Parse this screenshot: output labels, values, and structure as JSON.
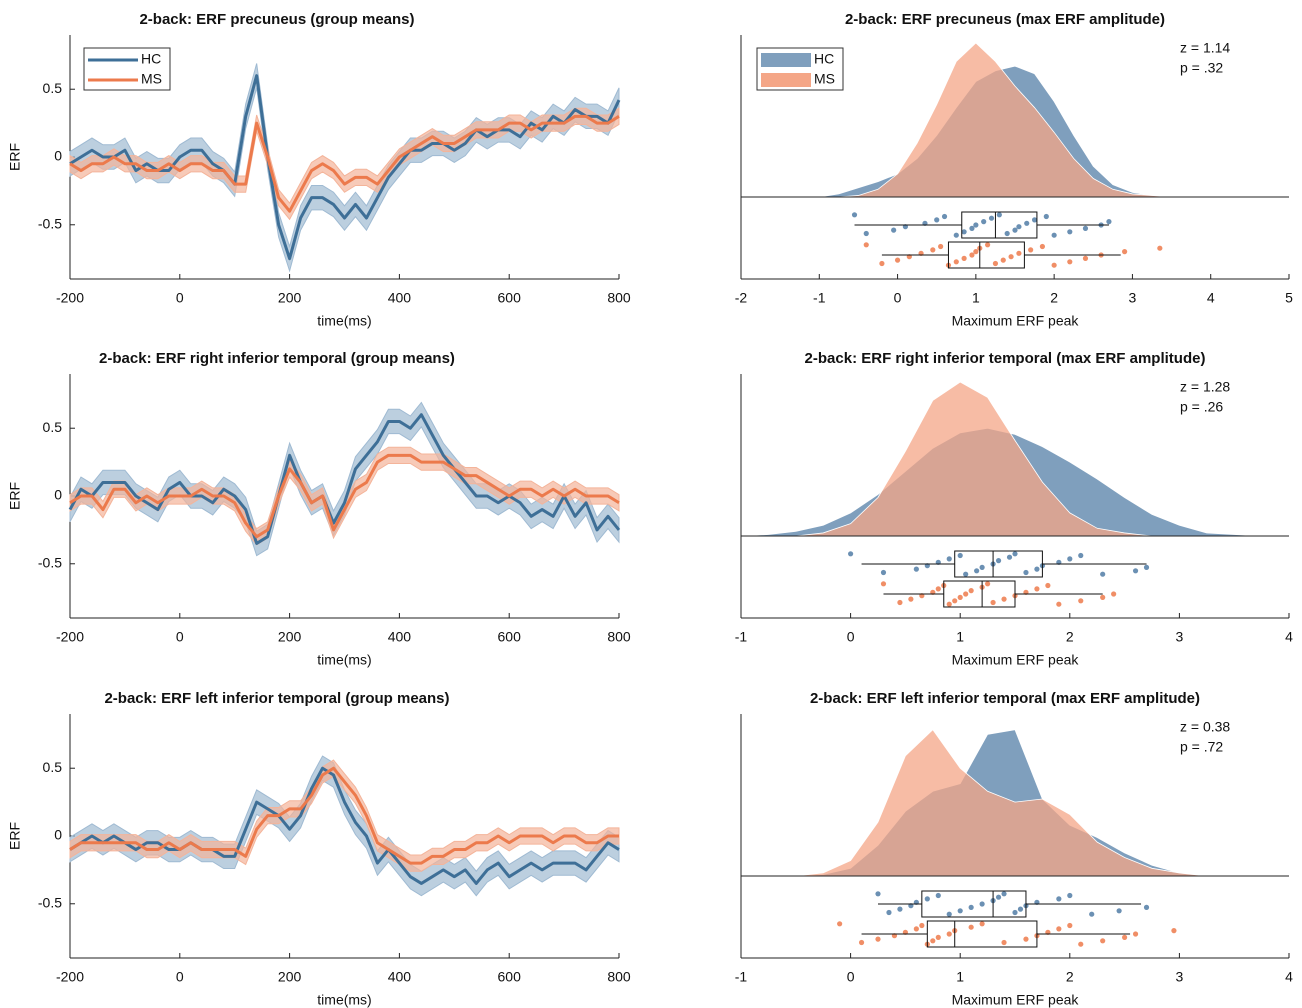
{
  "chart_data": [
    {
      "type": "line",
      "title": "2-back: ERF precuneus (group means)",
      "xlabel": "time(ms)",
      "ylabel": "ERF",
      "legend": "upper left",
      "xlim": [
        -200,
        800
      ],
      "xticks": [
        -200,
        0,
        200,
        400,
        600,
        800
      ],
      "ylim": [
        -0.9,
        0.9
      ],
      "yticks": [
        -0.5,
        0,
        0.5
      ],
      "x": [
        -200,
        -180,
        -160,
        -140,
        -120,
        -100,
        -80,
        -60,
        -40,
        -20,
        0,
        20,
        40,
        60,
        80,
        100,
        120,
        140,
        160,
        180,
        200,
        220,
        240,
        260,
        280,
        300,
        320,
        340,
        360,
        380,
        400,
        420,
        440,
        460,
        480,
        500,
        520,
        540,
        560,
        580,
        600,
        620,
        640,
        660,
        680,
        700,
        720,
        740,
        760,
        780,
        800
      ],
      "series": [
        {
          "name": "HC",
          "color": "#3e6f97",
          "band_color": "#9fbad2",
          "band": 0.09,
          "values": [
            -0.05,
            0.0,
            0.05,
            0.0,
            0.0,
            0.05,
            -0.1,
            -0.05,
            -0.1,
            -0.1,
            0.0,
            0.05,
            0.05,
            -0.05,
            -0.1,
            -0.2,
            0.3,
            0.6,
            0.0,
            -0.5,
            -0.75,
            -0.45,
            -0.3,
            -0.3,
            -0.35,
            -0.45,
            -0.35,
            -0.45,
            -0.3,
            -0.15,
            -0.05,
            0.05,
            0.05,
            0.1,
            0.1,
            0.05,
            0.1,
            0.2,
            0.15,
            0.2,
            0.2,
            0.15,
            0.25,
            0.2,
            0.3,
            0.25,
            0.35,
            0.3,
            0.3,
            0.25,
            0.42
          ]
        },
        {
          "name": "MS",
          "color": "#ec7a4c",
          "band_color": "#f4b49a",
          "band": 0.06,
          "values": [
            -0.05,
            -0.1,
            -0.05,
            -0.05,
            0.0,
            -0.05,
            -0.05,
            -0.1,
            -0.1,
            -0.05,
            -0.1,
            -0.05,
            -0.05,
            -0.1,
            -0.1,
            -0.2,
            -0.2,
            0.25,
            0.0,
            -0.3,
            -0.4,
            -0.25,
            -0.1,
            -0.05,
            -0.1,
            -0.2,
            -0.15,
            -0.15,
            -0.2,
            -0.1,
            0.0,
            0.05,
            0.1,
            0.15,
            0.1,
            0.1,
            0.15,
            0.2,
            0.2,
            0.2,
            0.25,
            0.25,
            0.2,
            0.25,
            0.25,
            0.25,
            0.3,
            0.3,
            0.25,
            0.25,
            0.3
          ]
        }
      ]
    },
    {
      "type": "raincloud",
      "title": "2-back: ERF precuneus (max ERF amplitude)",
      "xlabel": "Maximum ERF peak",
      "legend": "upper left",
      "xlim": [
        -2,
        5
      ],
      "xticks": [
        -2,
        -1,
        0,
        1,
        2,
        3,
        4,
        5
      ],
      "annotations": [
        "z = 1.14",
        "p = .32"
      ],
      "density_x": [
        -1,
        -0.75,
        -0.5,
        -0.25,
        0,
        0.25,
        0.5,
        0.75,
        1,
        1.25,
        1.5,
        1.75,
        2,
        2.25,
        2.5,
        2.75,
        3,
        3.25,
        3.5,
        3.75,
        4
      ],
      "series": [
        {
          "name": "HC",
          "color": "#7f9fbd",
          "point_color": "#6b90b3",
          "density": [
            0,
            0.02,
            0.06,
            0.1,
            0.15,
            0.25,
            0.4,
            0.58,
            0.75,
            0.82,
            0.85,
            0.8,
            0.62,
            0.4,
            0.2,
            0.08,
            0.03,
            0.01,
            0,
            0,
            0
          ],
          "box": {
            "whislo": -0.55,
            "q1": 0.82,
            "med": 1.25,
            "q3": 1.78,
            "whishi": 2.7
          },
          "points": [
            -0.55,
            -0.4,
            -0.05,
            0.1,
            0.35,
            0.5,
            0.6,
            0.75,
            0.85,
            0.95,
            1.0,
            1.1,
            1.2,
            1.3,
            1.4,
            1.5,
            1.55,
            1.65,
            1.75,
            1.9,
            2.0,
            2.2,
            2.4,
            2.6,
            2.7
          ]
        },
        {
          "name": "MS",
          "color": "#f4a687",
          "point_color": "#f08e66",
          "density": [
            0,
            0,
            0.01,
            0.05,
            0.15,
            0.35,
            0.6,
            0.88,
            1.0,
            0.88,
            0.72,
            0.58,
            0.42,
            0.25,
            0.12,
            0.05,
            0.02,
            0.01,
            0,
            0,
            0
          ],
          "box": {
            "whislo": -0.2,
            "q1": 0.65,
            "med": 1.05,
            "q3": 1.62,
            "whishi": 2.85
          },
          "points": [
            -0.4,
            -0.2,
            0.0,
            0.15,
            0.3,
            0.45,
            0.55,
            0.65,
            0.75,
            0.85,
            0.95,
            1.0,
            1.05,
            1.15,
            1.25,
            1.35,
            1.45,
            1.55,
            1.7,
            1.85,
            2.0,
            2.2,
            2.4,
            2.6,
            2.9,
            3.35
          ]
        }
      ]
    },
    {
      "type": "line",
      "title": "2-back: ERF right inferior temporal (group means)",
      "xlabel": "time(ms)",
      "ylabel": "ERF",
      "xlim": [
        -200,
        800
      ],
      "xticks": [
        -200,
        0,
        200,
        400,
        600,
        800
      ],
      "ylim": [
        -0.9,
        0.9
      ],
      "yticks": [
        -0.5,
        0,
        0.5
      ],
      "x": [
        -200,
        -180,
        -160,
        -140,
        -120,
        -100,
        -80,
        -60,
        -40,
        -20,
        0,
        20,
        40,
        60,
        80,
        100,
        120,
        140,
        160,
        180,
        200,
        220,
        240,
        260,
        280,
        300,
        320,
        340,
        360,
        380,
        400,
        420,
        440,
        460,
        480,
        500,
        520,
        540,
        560,
        580,
        600,
        620,
        640,
        660,
        680,
        700,
        720,
        740,
        760,
        780,
        800
      ],
      "series": [
        {
          "name": "HC",
          "color": "#3e6f97",
          "band_color": "#9fbad2",
          "band": 0.09,
          "values": [
            -0.1,
            0.05,
            0.0,
            0.1,
            0.1,
            0.1,
            0.0,
            -0.05,
            -0.1,
            0.05,
            0.1,
            0.0,
            0.0,
            -0.05,
            0.05,
            0.0,
            -0.1,
            -0.35,
            -0.3,
            0.0,
            0.3,
            0.1,
            -0.05,
            0.0,
            -0.2,
            -0.05,
            0.2,
            0.3,
            0.4,
            0.55,
            0.55,
            0.5,
            0.6,
            0.45,
            0.3,
            0.2,
            0.1,
            0.0,
            0.0,
            -0.05,
            0.0,
            -0.05,
            -0.15,
            -0.1,
            -0.15,
            0.0,
            -0.15,
            -0.05,
            -0.25,
            -0.15,
            -0.25
          ]
        },
        {
          "name": "MS",
          "color": "#ec7a4c",
          "band_color": "#f4b49a",
          "band": 0.06,
          "values": [
            -0.05,
            0.0,
            0.0,
            -0.1,
            0.05,
            0.05,
            -0.05,
            0.0,
            -0.05,
            0.0,
            0.0,
            0.0,
            0.05,
            0.0,
            0.0,
            -0.05,
            -0.2,
            -0.3,
            -0.25,
            0.0,
            0.2,
            0.1,
            -0.05,
            0.0,
            -0.25,
            -0.1,
            0.05,
            0.1,
            0.25,
            0.3,
            0.3,
            0.3,
            0.25,
            0.25,
            0.25,
            0.2,
            0.15,
            0.15,
            0.1,
            0.05,
            0.0,
            0.05,
            0.05,
            0.0,
            0.05,
            0.0,
            0.05,
            0.0,
            0.0,
            0.0,
            -0.05
          ]
        }
      ]
    },
    {
      "type": "raincloud",
      "title": "2-back: ERF right inferior temporal (max ERF amplitude)",
      "xlabel": "Maximum ERF peak",
      "xlim": [
        -1,
        4
      ],
      "xticks": [
        -1,
        0,
        1,
        2,
        3,
        4
      ],
      "annotations": [
        "z = 1.28",
        "p = .26"
      ],
      "density_x": [
        -1,
        -0.75,
        -0.5,
        -0.25,
        0,
        0.25,
        0.5,
        0.75,
        1,
        1.25,
        1.5,
        1.75,
        2,
        2.25,
        2.5,
        2.75,
        3,
        3.25,
        3.5,
        3.75,
        4
      ],
      "series": [
        {
          "name": "HC",
          "color": "#7f9fbd",
          "point_color": "#6b90b3",
          "density": [
            0,
            0.01,
            0.03,
            0.07,
            0.15,
            0.27,
            0.42,
            0.57,
            0.67,
            0.7,
            0.66,
            0.58,
            0.48,
            0.37,
            0.25,
            0.14,
            0.07,
            0.02,
            0.01,
            0,
            0
          ],
          "box": {
            "whislo": 0.1,
            "q1": 0.95,
            "med": 1.3,
            "q3": 1.75,
            "whishi": 2.7
          },
          "points": [
            0.0,
            0.3,
            0.6,
            0.7,
            0.8,
            0.9,
            1.0,
            1.05,
            1.15,
            1.2,
            1.3,
            1.35,
            1.45,
            1.5,
            1.6,
            1.7,
            1.75,
            1.9,
            2.0,
            2.1,
            2.3,
            2.6,
            2.7
          ]
        },
        {
          "name": "MS",
          "color": "#f4a687",
          "point_color": "#f08e66",
          "density": [
            0,
            0,
            0,
            0.02,
            0.08,
            0.25,
            0.55,
            0.88,
            1.0,
            0.9,
            0.62,
            0.35,
            0.15,
            0.05,
            0.02,
            0,
            0,
            0,
            0,
            0,
            0
          ],
          "box": {
            "whislo": 0.3,
            "q1": 0.85,
            "med": 1.2,
            "q3": 1.5,
            "whishi": 2.3
          },
          "points": [
            0.3,
            0.45,
            0.55,
            0.65,
            0.75,
            0.8,
            0.85,
            0.9,
            0.95,
            1.0,
            1.05,
            1.1,
            1.2,
            1.25,
            1.3,
            1.4,
            1.5,
            1.6,
            1.7,
            1.8,
            1.9,
            2.1,
            2.3,
            2.4
          ]
        }
      ]
    },
    {
      "type": "line",
      "title": "2-back: ERF left inferior temporal (group means)",
      "xlabel": "time(ms)",
      "ylabel": "ERF",
      "xlim": [
        -200,
        800
      ],
      "xticks": [
        -200,
        0,
        200,
        400,
        600,
        800
      ],
      "ylim": [
        -0.9,
        0.9
      ],
      "yticks": [
        -0.5,
        0,
        0.5
      ],
      "x": [
        -200,
        -180,
        -160,
        -140,
        -120,
        -100,
        -80,
        -60,
        -40,
        -20,
        0,
        20,
        40,
        60,
        80,
        100,
        120,
        140,
        160,
        180,
        200,
        220,
        240,
        260,
        280,
        300,
        320,
        340,
        360,
        380,
        400,
        420,
        440,
        460,
        480,
        500,
        520,
        540,
        560,
        580,
        600,
        620,
        640,
        660,
        680,
        700,
        720,
        740,
        760,
        780,
        800
      ],
      "series": [
        {
          "name": "HC",
          "color": "#3e6f97",
          "band_color": "#9fbad2",
          "band": 0.09,
          "values": [
            -0.1,
            -0.05,
            0.0,
            -0.05,
            0.0,
            -0.05,
            -0.1,
            -0.05,
            -0.05,
            -0.1,
            -0.1,
            -0.05,
            -0.1,
            -0.1,
            -0.15,
            -0.15,
            0.05,
            0.25,
            0.2,
            0.15,
            0.05,
            0.15,
            0.35,
            0.5,
            0.45,
            0.25,
            0.1,
            0.0,
            -0.2,
            -0.1,
            -0.2,
            -0.3,
            -0.35,
            -0.3,
            -0.25,
            -0.3,
            -0.25,
            -0.35,
            -0.25,
            -0.2,
            -0.3,
            -0.25,
            -0.2,
            -0.25,
            -0.2,
            -0.2,
            -0.2,
            -0.25,
            -0.15,
            -0.05,
            -0.1
          ]
        },
        {
          "name": "MS",
          "color": "#ec7a4c",
          "band_color": "#f4b49a",
          "band": 0.06,
          "values": [
            -0.1,
            -0.05,
            -0.05,
            -0.05,
            -0.05,
            -0.05,
            -0.05,
            -0.1,
            -0.1,
            -0.05,
            -0.1,
            -0.05,
            -0.1,
            -0.1,
            -0.1,
            -0.1,
            -0.15,
            0.05,
            0.15,
            0.15,
            0.2,
            0.2,
            0.3,
            0.45,
            0.5,
            0.4,
            0.3,
            0.15,
            -0.05,
            -0.1,
            -0.15,
            -0.2,
            -0.2,
            -0.15,
            -0.15,
            -0.1,
            -0.1,
            -0.05,
            -0.05,
            0.0,
            -0.05,
            0.0,
            0.0,
            0.0,
            -0.05,
            0.0,
            0.0,
            -0.05,
            -0.05,
            0.0,
            0.0
          ]
        }
      ]
    },
    {
      "type": "raincloud",
      "title": "2-back: ERF left inferior temporal (max ERF amplitude)",
      "xlabel": "Maximum ERF peak",
      "xlim": [
        -1,
        4
      ],
      "xticks": [
        -1,
        0,
        1,
        2,
        3,
        4
      ],
      "annotations": [
        "z = 0.38",
        "p = .72"
      ],
      "density_x": [
        -1,
        -0.75,
        -0.5,
        -0.25,
        0,
        0.25,
        0.5,
        0.75,
        1,
        1.25,
        1.5,
        1.75,
        2,
        2.25,
        2.5,
        2.75,
        3,
        3.25,
        3.5,
        3.75,
        4
      ],
      "series": [
        {
          "name": "HC",
          "color": "#7f9fbd",
          "point_color": "#6b90b3",
          "density": [
            0,
            0,
            0,
            0.01,
            0.05,
            0.2,
            0.42,
            0.55,
            0.6,
            0.92,
            0.95,
            0.5,
            0.33,
            0.25,
            0.15,
            0.07,
            0.02,
            0,
            0,
            0,
            0
          ],
          "box": {
            "whislo": 0.25,
            "q1": 0.65,
            "med": 1.3,
            "q3": 1.6,
            "whishi": 2.65
          },
          "points": [
            0.25,
            0.35,
            0.45,
            0.55,
            0.6,
            0.7,
            0.8,
            0.9,
            1.0,
            1.1,
            1.2,
            1.3,
            1.35,
            1.4,
            1.5,
            1.55,
            1.6,
            1.7,
            1.9,
            2.0,
            2.2,
            2.45,
            2.7
          ]
        },
        {
          "name": "MS",
          "color": "#f4a687",
          "point_color": "#f08e66",
          "density": [
            0,
            0,
            0,
            0.02,
            0.1,
            0.35,
            0.78,
            0.95,
            0.7,
            0.55,
            0.48,
            0.5,
            0.4,
            0.22,
            0.12,
            0.05,
            0.02,
            0,
            0,
            0,
            0
          ],
          "box": {
            "whislo": 0.1,
            "q1": 0.7,
            "med": 0.95,
            "q3": 1.7,
            "whishi": 2.55
          },
          "points": [
            -0.1,
            0.1,
            0.25,
            0.4,
            0.5,
            0.6,
            0.65,
            0.7,
            0.75,
            0.8,
            0.9,
            0.95,
            1.1,
            1.2,
            1.4,
            1.6,
            1.7,
            1.8,
            1.9,
            2.0,
            2.1,
            2.3,
            2.5,
            2.6,
            2.95
          ]
        }
      ]
    }
  ]
}
